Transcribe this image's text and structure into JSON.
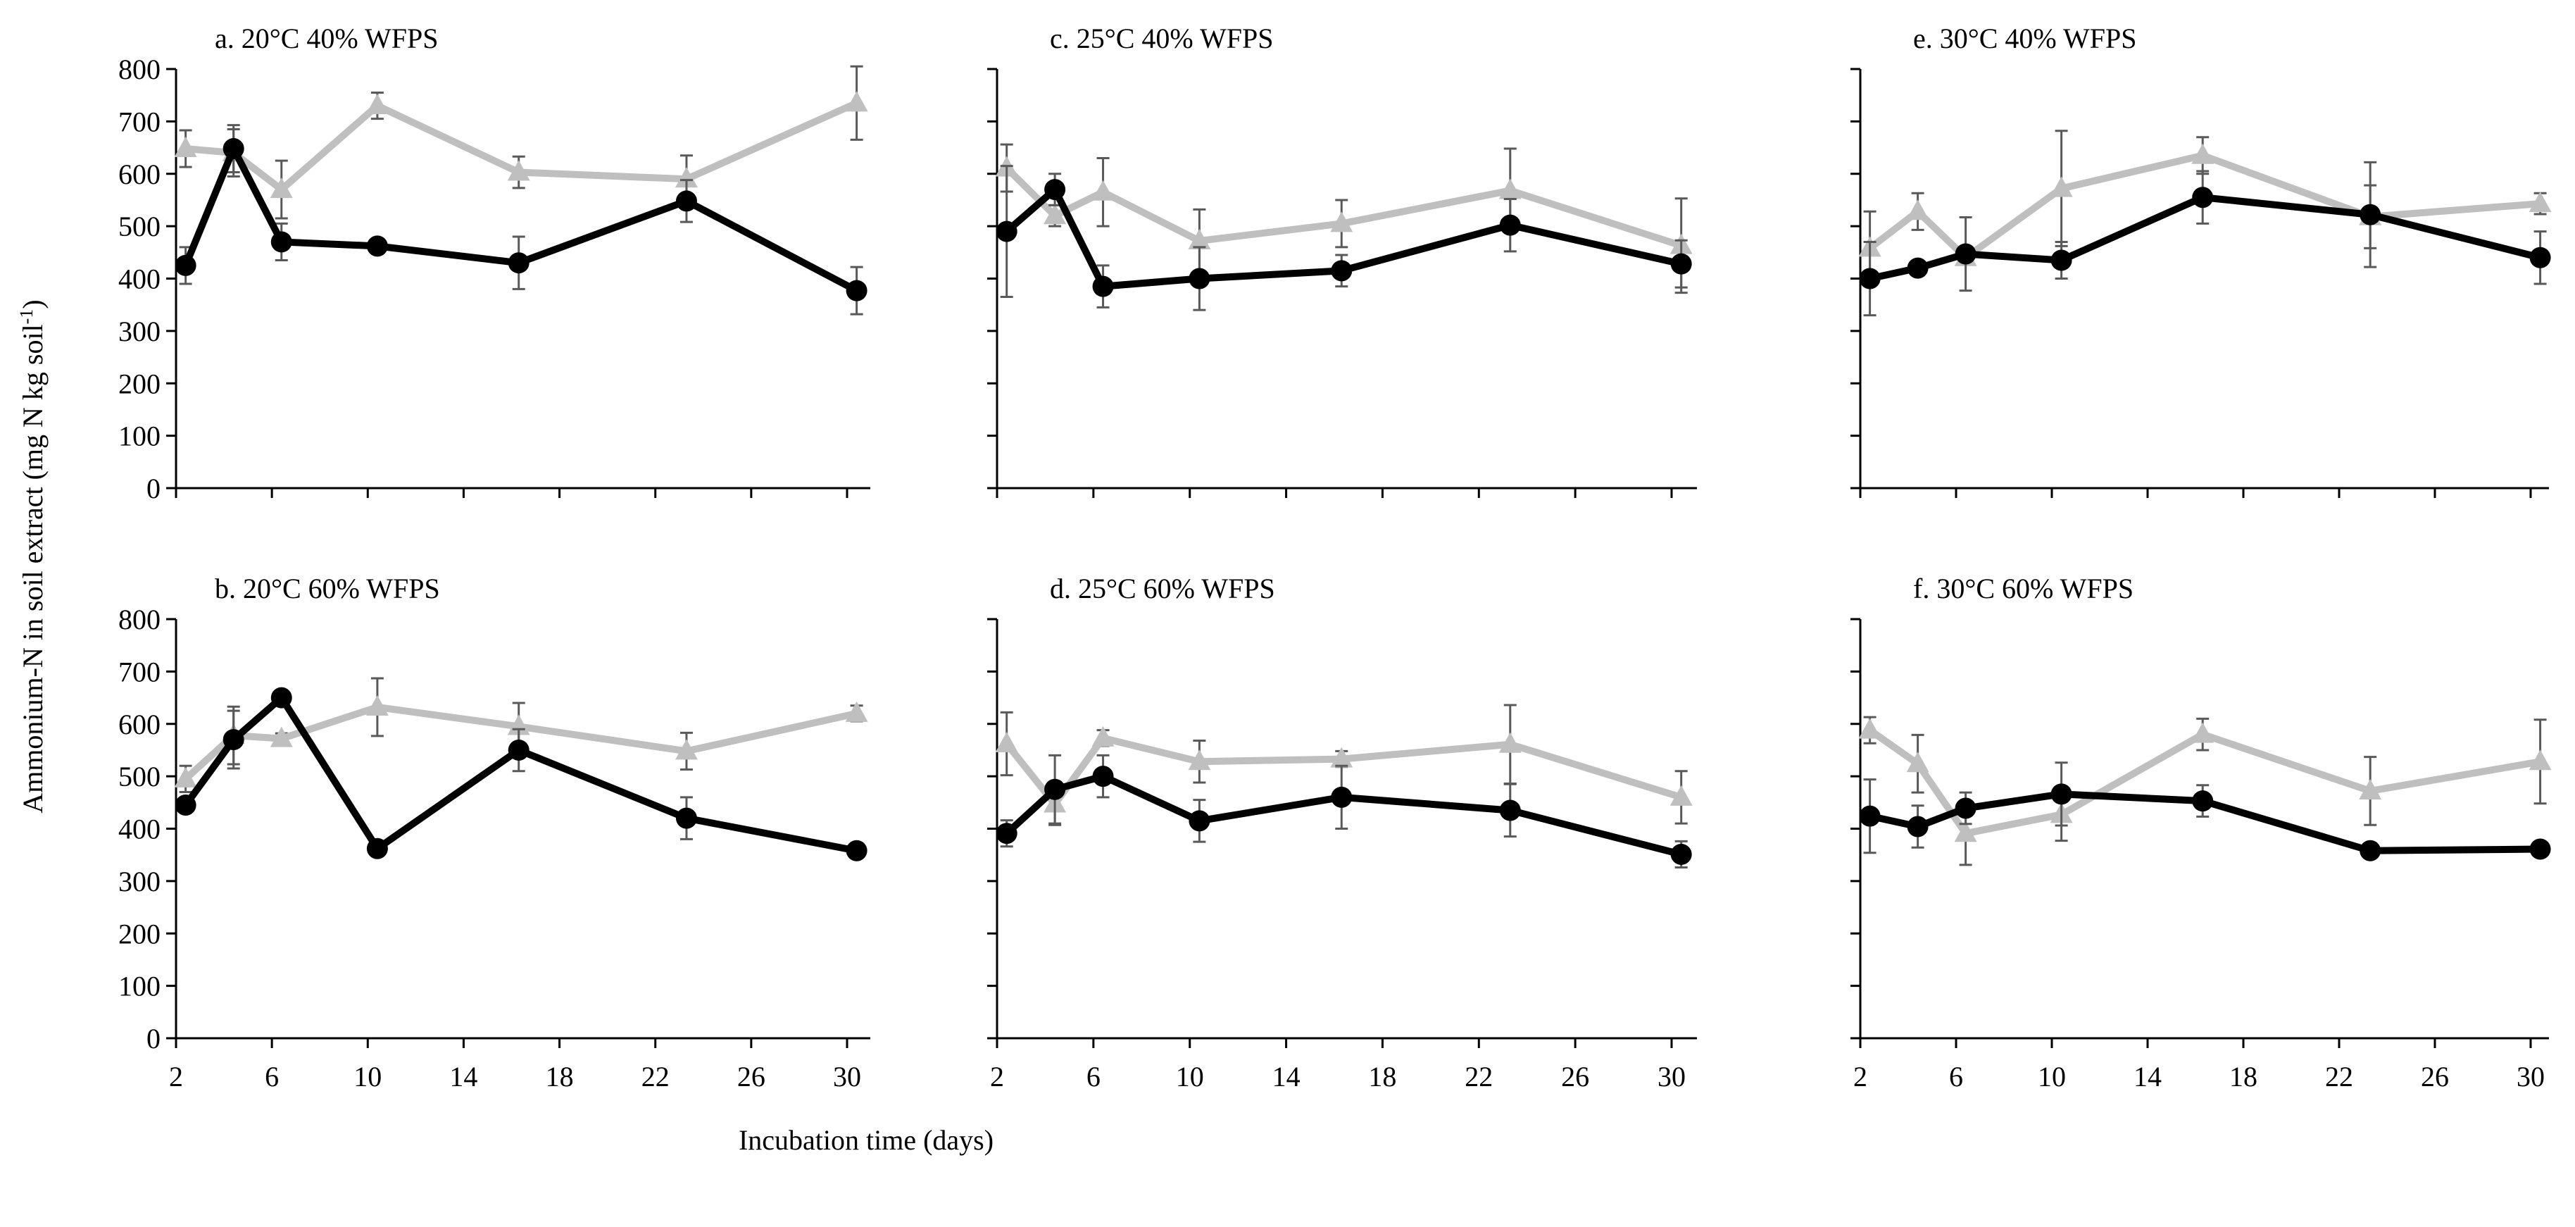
{
  "chart_data": {
    "type": "line",
    "xlabel": "Incubation time (days)",
    "ylabel": "Ammonium-N in soil extract (mg N kg soil",
    "ylabel_sup": "-1",
    "ylabel_end": ")",
    "xlim": [
      2,
      31
    ],
    "ylim": [
      0,
      800
    ],
    "xticks": [
      2,
      6,
      10,
      14,
      18,
      22,
      26,
      30
    ],
    "yticks": [
      0,
      100,
      200,
      300,
      400,
      500,
      600,
      700,
      800
    ],
    "colors": {
      "black_series": "#000000",
      "gray_series": "#bfbfbf",
      "error_bar": "#595959"
    },
    "x": [
      2.4,
      4.4,
      6.4,
      10.4,
      16.3,
      23.3,
      30.4
    ],
    "panels": [
      {
        "id": "a",
        "title": "a. 20°C 40% WFPS",
        "row": 0,
        "col": 0,
        "show_y_labels": true,
        "series": [
          {
            "name": "black-circle",
            "marker": "circle",
            "values": [
              425,
              648,
              470,
              462,
              430,
              548,
              377
            ],
            "errors": [
              35,
              45,
              35,
              10,
              50,
              40,
              45
            ]
          },
          {
            "name": "gray-triangle",
            "marker": "triangle",
            "values": [
              648,
              640,
              570,
              730,
              603,
              590,
              735
            ],
            "errors": [
              35,
              45,
              55,
              25,
              30,
              45,
              70
            ]
          }
        ]
      },
      {
        "id": "b",
        "title": "b. 20°C 60% WFPS",
        "row": 1,
        "col": 0,
        "show_y_labels": true,
        "series": [
          {
            "name": "black-circle",
            "marker": "circle",
            "values": [
              445,
              570,
              650,
              362,
              550,
              420,
              358
            ],
            "errors": [
              10,
              55,
              10,
              10,
              40,
              40,
              10
            ]
          },
          {
            "name": "gray-triangle",
            "marker": "triangle",
            "values": [
              495,
              578,
              572,
              632,
              595,
              548,
              620
            ],
            "errors": [
              25,
              55,
              10,
              55,
              45,
              35,
              15
            ]
          }
        ]
      },
      {
        "id": "c",
        "title": "c. 25°C 40% WFPS",
        "row": 0,
        "col": 1,
        "show_y_labels": false,
        "series": [
          {
            "name": "black-circle",
            "marker": "circle",
            "values": [
              490,
              570,
              385,
              400,
              415,
              502,
              428
            ],
            "errors": [
              125,
              30,
              40,
              60,
              30,
              50,
              45
            ]
          },
          {
            "name": "gray-triangle",
            "marker": "triangle",
            "values": [
              611,
              520,
              565,
              472,
              505,
              568,
              463
            ],
            "errors": [
              45,
              20,
              65,
              60,
              45,
              80,
              90
            ]
          }
        ]
      },
      {
        "id": "d",
        "title": "d. 25°C 60% WFPS",
        "row": 1,
        "col": 1,
        "show_y_labels": false,
        "series": [
          {
            "name": "black-circle",
            "marker": "circle",
            "values": [
              391,
              475,
              500,
              415,
              460,
              435,
              351
            ],
            "errors": [
              25,
              65,
              40,
              40,
              60,
              50,
              25
            ]
          },
          {
            "name": "gray-triangle",
            "marker": "triangle",
            "values": [
              562,
              447,
              573,
              528,
              533,
              561,
              460
            ],
            "errors": [
              60,
              40,
              15,
              40,
              15,
              75,
              50
            ]
          }
        ]
      },
      {
        "id": "e",
        "title": "e. 30°C 40% WFPS",
        "row": 0,
        "col": 2,
        "show_y_labels": false,
        "series": [
          {
            "name": "black-circle",
            "marker": "circle",
            "values": [
              400,
              420,
              447,
              435,
              555,
              522,
              440
            ],
            "errors": [
              70,
              10,
              70,
              35,
              50,
              100,
              50
            ]
          },
          {
            "name": "gray-triangle",
            "marker": "triangle",
            "values": [
              458,
              528,
              440,
              572,
              635,
              518,
              543
            ],
            "errors": [
              70,
              35,
              10,
              110,
              35,
              60,
              20
            ]
          }
        ]
      },
      {
        "id": "f",
        "title": "f. 30°C 60% WFPS",
        "row": 1,
        "col": 2,
        "show_y_labels": false,
        "series": [
          {
            "name": "black-circle",
            "marker": "circle",
            "values": [
              424,
              404,
              439,
              466,
              453,
              358,
              361
            ],
            "errors": [
              70,
              40,
              30,
              60,
              30,
              5,
              5
            ]
          },
          {
            "name": "gray-triangle",
            "marker": "triangle",
            "values": [
              588,
              524,
              391,
              427,
              580,
              472,
              528
            ],
            "errors": [
              25,
              55,
              60,
              50,
              30,
              65,
              80
            ]
          }
        ]
      }
    ]
  }
}
